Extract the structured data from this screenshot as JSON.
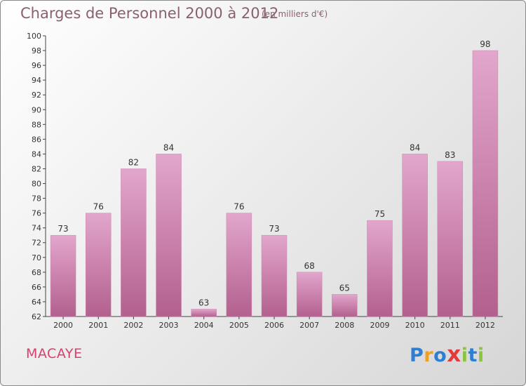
{
  "header": {
    "title": "Charges de Personnel 2000 à 2012",
    "subtitle": "(en milliers d'€)"
  },
  "footer": {
    "place": "MACAYE",
    "logo_text": "Proxiti",
    "logo_colors": [
      "#2f7fd1",
      "#f0a020",
      "#2f7fd1",
      "#e23b3b",
      "#8bc43f",
      "#2f7fd1",
      "#8bc43f"
    ]
  },
  "colors": {
    "bar_top": "#e2a6cc",
    "bar_bottom": "#b3608e",
    "axis": "#444444",
    "text": "#333333"
  },
  "chart_data": {
    "type": "bar",
    "title": "Charges de Personnel 2000 à 2012",
    "subtitle": "(en milliers d'€)",
    "xlabel": "",
    "ylabel": "",
    "categories": [
      "2000",
      "2001",
      "2002",
      "2003",
      "2004",
      "2005",
      "2006",
      "2007",
      "2008",
      "2009",
      "2010",
      "2011",
      "2012"
    ],
    "values": [
      73,
      76,
      82,
      84,
      63,
      76,
      73,
      68,
      65,
      75,
      84,
      83,
      98
    ],
    "ylim": [
      62,
      100
    ],
    "yticks": [
      62,
      64,
      66,
      68,
      70,
      72,
      74,
      76,
      78,
      80,
      82,
      84,
      86,
      88,
      90,
      92,
      94,
      96,
      98,
      100
    ],
    "grid": false,
    "data_labels": true
  }
}
